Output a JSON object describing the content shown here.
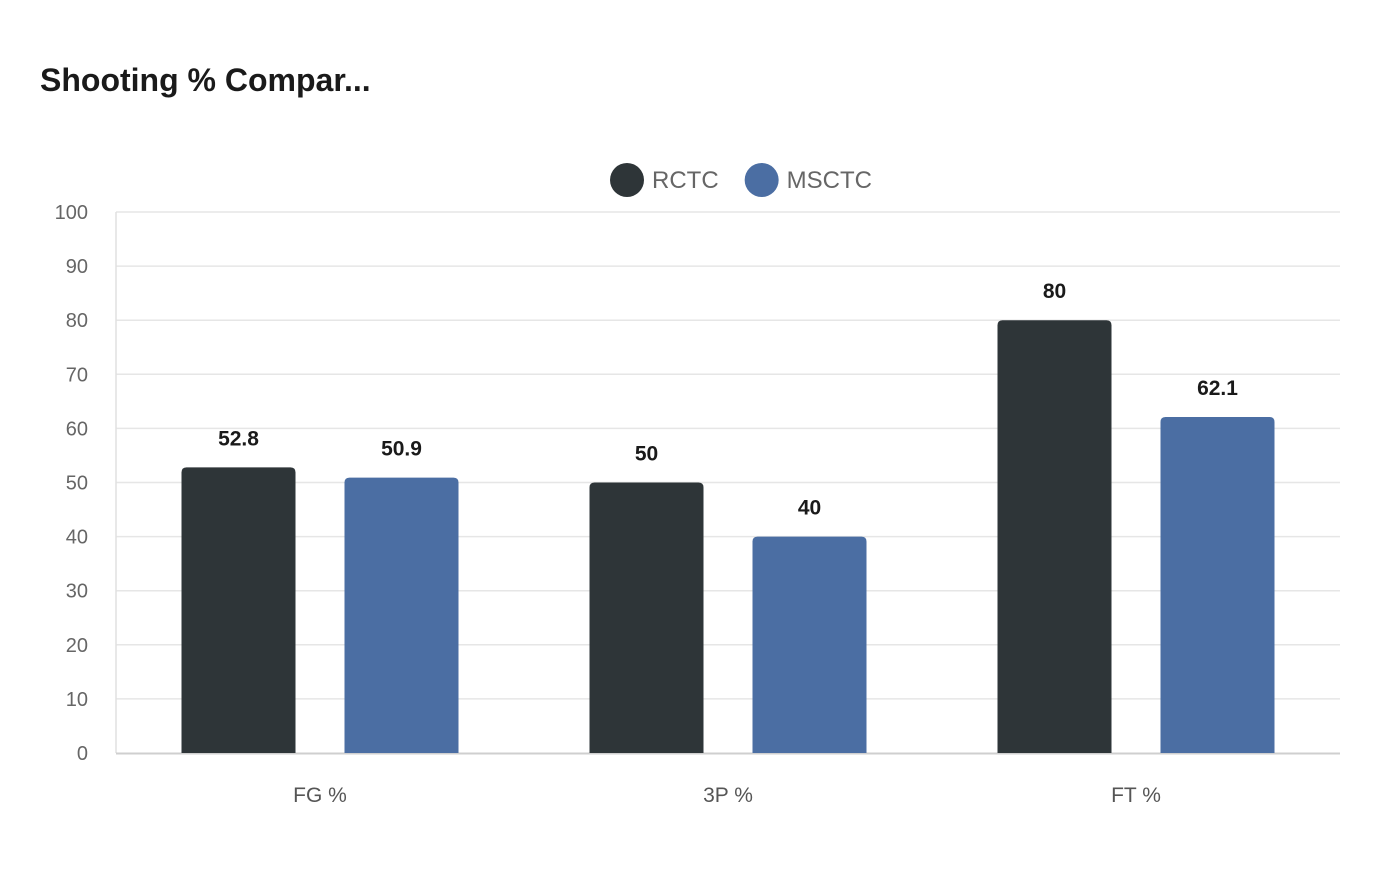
{
  "chart_data": {
    "type": "bar",
    "title": "Shooting % Compar...",
    "categories": [
      "FG %",
      "3P %",
      "FT %"
    ],
    "series": [
      {
        "name": "RCTC",
        "color": "#2e3538",
        "values": [
          52.8,
          50,
          80
        ]
      },
      {
        "name": "MSCTC",
        "color": "#4b6ea3",
        "values": [
          50.9,
          40,
          62.1
        ]
      }
    ],
    "ylim": [
      0,
      100
    ],
    "yticks": [
      0,
      10,
      20,
      30,
      40,
      50,
      60,
      70,
      80,
      90,
      100
    ],
    "xlabel": "",
    "ylabel": "",
    "grid": true,
    "legend_position": "top-center",
    "data_labels": true
  }
}
